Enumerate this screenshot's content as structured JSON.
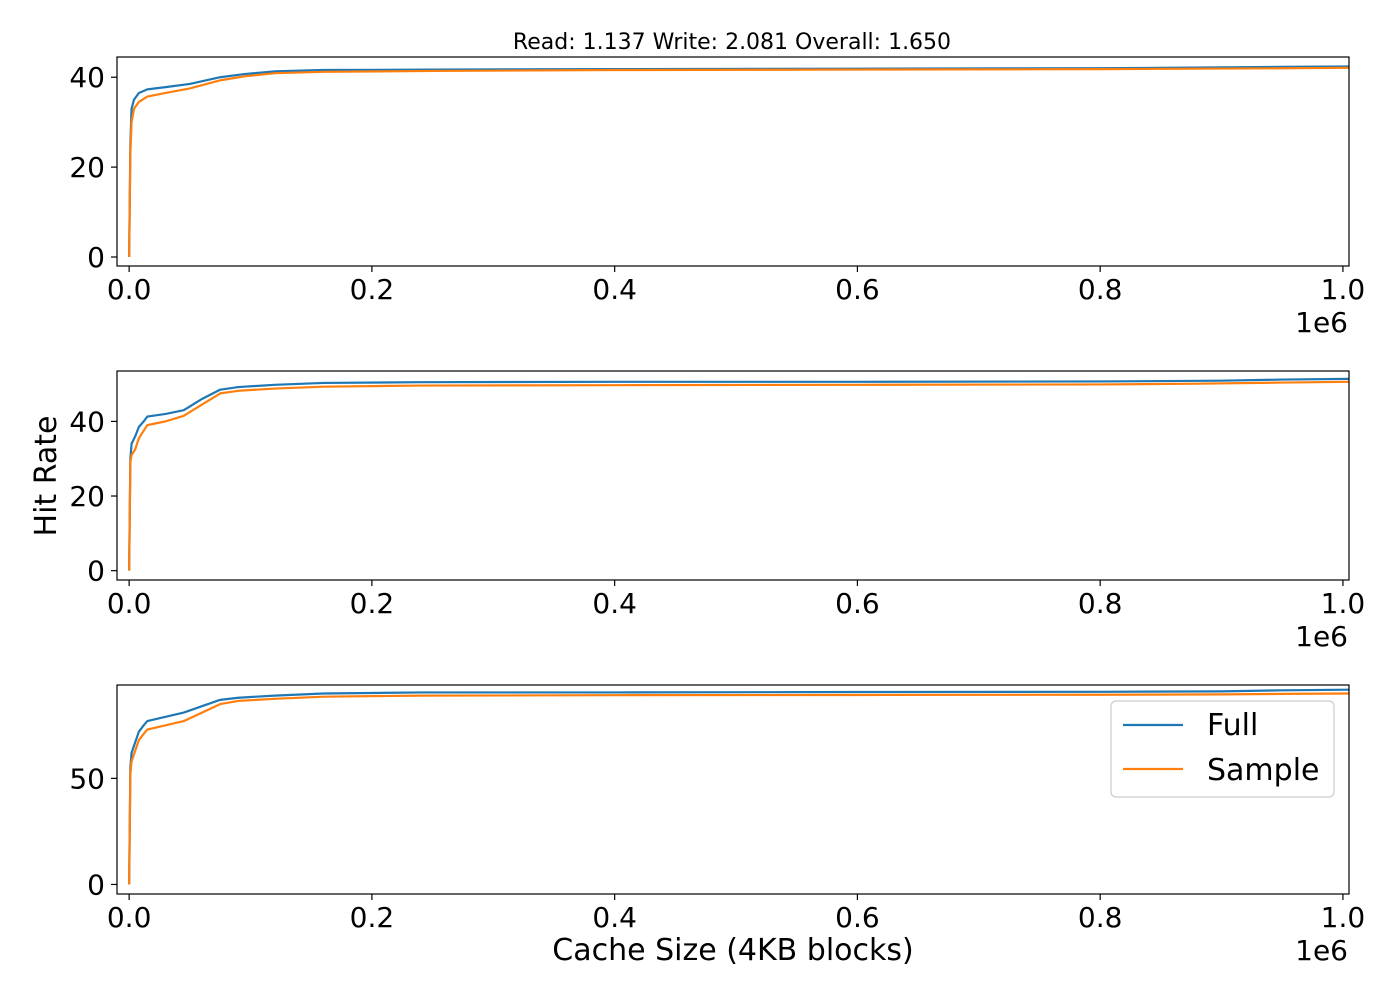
{
  "chart_data": [
    {
      "type": "line",
      "title": "Read: 1.137 Write: 2.081 Overall: 1.650",
      "xlabel": "",
      "ylabel": "",
      "x_offset_label": "1e6",
      "xlim": [
        -10000,
        1005000
      ],
      "ylim": [
        -2,
        44.5
      ],
      "xticks": [
        {
          "value": 0,
          "label": "0.0"
        },
        {
          "value": 200000,
          "label": "0.2"
        },
        {
          "value": 400000,
          "label": "0.4"
        },
        {
          "value": 600000,
          "label": "0.6"
        },
        {
          "value": 800000,
          "label": "0.8"
        },
        {
          "value": 1000000,
          "label": "1.0"
        }
      ],
      "yticks": [
        {
          "value": 0,
          "label": "0"
        },
        {
          "value": 20,
          "label": "20"
        },
        {
          "value": 40,
          "label": "40"
        }
      ],
      "series": [
        {
          "name": "Full",
          "color": "#1f77b4",
          "points": [
            [
              0,
              0
            ],
            [
              1000,
              25
            ],
            [
              2000,
              33
            ],
            [
              4000,
              35
            ],
            [
              8000,
              36.5
            ],
            [
              15000,
              37.3
            ],
            [
              30000,
              37.8
            ],
            [
              50000,
              38.5
            ],
            [
              75000,
              40
            ],
            [
              95000,
              40.7
            ],
            [
              120000,
              41.3
            ],
            [
              160000,
              41.6
            ],
            [
              250000,
              41.7
            ],
            [
              400000,
              41.8
            ],
            [
              600000,
              41.9
            ],
            [
              800000,
              42
            ],
            [
              950000,
              42.3
            ],
            [
              1005000,
              42.4
            ]
          ]
        },
        {
          "name": "Sample",
          "color": "#ff7f0e",
          "points": [
            [
              0,
              0
            ],
            [
              1000,
              23
            ],
            [
              2000,
              30
            ],
            [
              4000,
              33
            ],
            [
              8000,
              34.5
            ],
            [
              15000,
              35.7
            ],
            [
              30000,
              36.5
            ],
            [
              50000,
              37.5
            ],
            [
              75000,
              39.3
            ],
            [
              95000,
              40.2
            ],
            [
              120000,
              40.9
            ],
            [
              160000,
              41.2
            ],
            [
              250000,
              41.4
            ],
            [
              400000,
              41.6
            ],
            [
              600000,
              41.7
            ],
            [
              800000,
              41.8
            ],
            [
              950000,
              42
            ],
            [
              1005000,
              42.1
            ]
          ]
        }
      ]
    },
    {
      "type": "line",
      "title": "",
      "xlabel": "",
      "ylabel": "Hit Rate",
      "x_offset_label": "1e6",
      "xlim": [
        -10000,
        1005000
      ],
      "ylim": [
        -2.5,
        53.5
      ],
      "xticks": [
        {
          "value": 0,
          "label": "0.0"
        },
        {
          "value": 200000,
          "label": "0.2"
        },
        {
          "value": 400000,
          "label": "0.4"
        },
        {
          "value": 600000,
          "label": "0.6"
        },
        {
          "value": 800000,
          "label": "0.8"
        },
        {
          "value": 1000000,
          "label": "1.0"
        }
      ],
      "yticks": [
        {
          "value": 0,
          "label": "0"
        },
        {
          "value": 20,
          "label": "20"
        },
        {
          "value": 40,
          "label": "40"
        }
      ],
      "series": [
        {
          "name": "Full",
          "color": "#1f77b4",
          "points": [
            [
              0,
              0
            ],
            [
              1000,
              30
            ],
            [
              2000,
              34
            ],
            [
              5000,
              36
            ],
            [
              8000,
              38.5
            ],
            [
              12000,
              40
            ],
            [
              15000,
              41.3
            ],
            [
              30000,
              42
            ],
            [
              45000,
              43
            ],
            [
              60000,
              46
            ],
            [
              75000,
              48.5
            ],
            [
              90000,
              49.2
            ],
            [
              120000,
              49.8
            ],
            [
              160000,
              50.3
            ],
            [
              240000,
              50.5
            ],
            [
              400000,
              50.6
            ],
            [
              600000,
              50.6
            ],
            [
              800000,
              50.7
            ],
            [
              900000,
              50.9
            ],
            [
              950000,
              51.2
            ],
            [
              1005000,
              51.4
            ]
          ]
        },
        {
          "name": "Sample",
          "color": "#ff7f0e",
          "points": [
            [
              0,
              0
            ],
            [
              1000,
              29
            ],
            [
              2000,
              31
            ],
            [
              5000,
              32.5
            ],
            [
              8000,
              35.5
            ],
            [
              12000,
              37.5
            ],
            [
              15000,
              39
            ],
            [
              30000,
              40
            ],
            [
              45000,
              41.5
            ],
            [
              60000,
              44.5
            ],
            [
              75000,
              47.5
            ],
            [
              90000,
              48.2
            ],
            [
              120000,
              48.8
            ],
            [
              160000,
              49.3
            ],
            [
              240000,
              49.6
            ],
            [
              400000,
              49.7
            ],
            [
              600000,
              49.8
            ],
            [
              800000,
              49.9
            ],
            [
              880000,
              50.1
            ],
            [
              950000,
              50.4
            ],
            [
              1005000,
              50.6
            ]
          ]
        }
      ]
    },
    {
      "type": "line",
      "title": "",
      "xlabel": "Cache Size (4KB blocks)",
      "ylabel": "",
      "x_offset_label": "1e6",
      "xlim": [
        -10000,
        1005000
      ],
      "ylim": [
        -4.5,
        94
      ],
      "xticks": [
        {
          "value": 0,
          "label": "0.0"
        },
        {
          "value": 200000,
          "label": "0.2"
        },
        {
          "value": 400000,
          "label": "0.4"
        },
        {
          "value": 600000,
          "label": "0.6"
        },
        {
          "value": 800000,
          "label": "0.8"
        },
        {
          "value": 1000000,
          "label": "1.0"
        }
      ],
      "yticks": [
        {
          "value": 0,
          "label": "0"
        },
        {
          "value": 50,
          "label": "50"
        }
      ],
      "legend": {
        "placement": "upper right",
        "entries": [
          "Full",
          "Sample"
        ]
      },
      "series": [
        {
          "name": "Full",
          "color": "#1f77b4",
          "points": [
            [
              0,
              0
            ],
            [
              1000,
              55
            ],
            [
              2000,
              62
            ],
            [
              5000,
              67
            ],
            [
              8000,
              72
            ],
            [
              12000,
              75
            ],
            [
              15000,
              77
            ],
            [
              30000,
              79
            ],
            [
              45000,
              81
            ],
            [
              60000,
              84
            ],
            [
              75000,
              87
            ],
            [
              90000,
              88
            ],
            [
              120000,
              89
            ],
            [
              160000,
              90
            ],
            [
              240000,
              90.5
            ],
            [
              400000,
              90.5
            ],
            [
              600000,
              90.7
            ],
            [
              800000,
              90.8
            ],
            [
              900000,
              91
            ],
            [
              950000,
              91.5
            ],
            [
              1005000,
              91.8
            ]
          ]
        },
        {
          "name": "Sample",
          "color": "#ff7f0e",
          "points": [
            [
              0,
              0
            ],
            [
              1000,
              52
            ],
            [
              2000,
              58
            ],
            [
              5000,
              63
            ],
            [
              8000,
              68
            ],
            [
              12000,
              71
            ],
            [
              15000,
              73
            ],
            [
              30000,
              75
            ],
            [
              45000,
              77
            ],
            [
              60000,
              81
            ],
            [
              75000,
              85
            ],
            [
              90000,
              86.5
            ],
            [
              120000,
              87.5
            ],
            [
              160000,
              88.5
            ],
            [
              240000,
              89
            ],
            [
              400000,
              89.2
            ],
            [
              600000,
              89.3
            ],
            [
              800000,
              89.4
            ],
            [
              900000,
              89.6
            ],
            [
              950000,
              89.8
            ],
            [
              1005000,
              90
            ]
          ]
        }
      ]
    }
  ]
}
